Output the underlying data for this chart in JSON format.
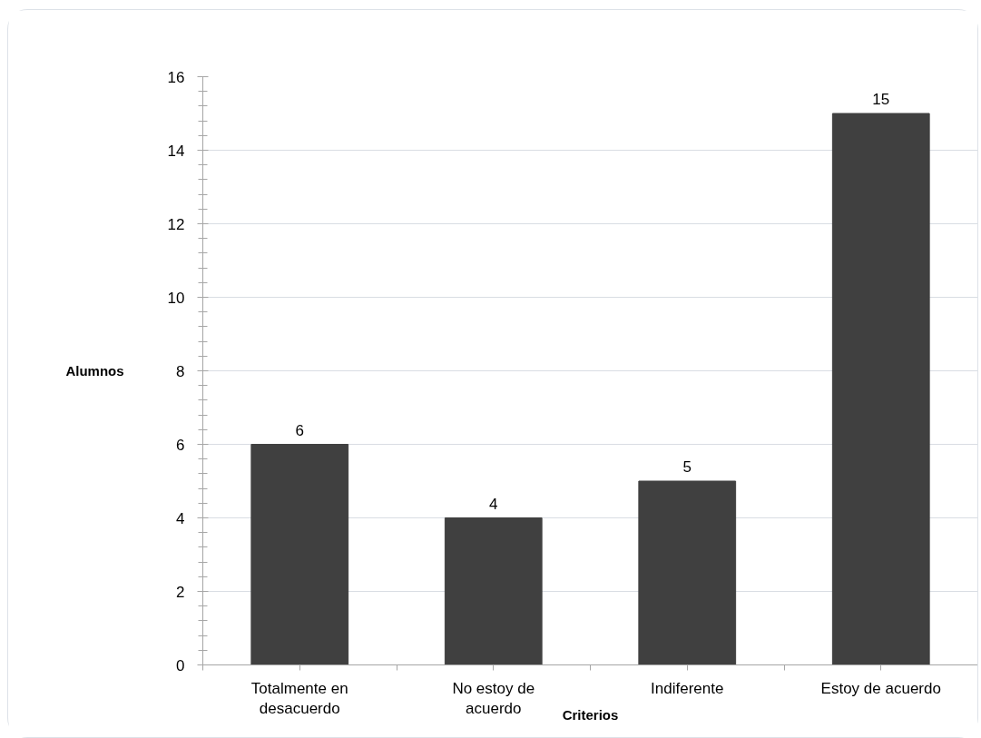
{
  "chart_data": {
    "type": "bar",
    "xlabel": "Criterios",
    "ylabel": "Alumnos",
    "categories": [
      "Totalmente en desacuerdo",
      "No estoy de acuerdo",
      "Indiferente",
      "Estoy de acuerdo"
    ],
    "values": [
      6,
      4,
      5,
      15
    ],
    "color": "#404040",
    "ylim": [
      0,
      16
    ],
    "yticks": [
      0,
      2,
      4,
      6,
      8,
      10,
      12,
      14,
      16
    ],
    "grid": "y",
    "data_labels": true
  }
}
